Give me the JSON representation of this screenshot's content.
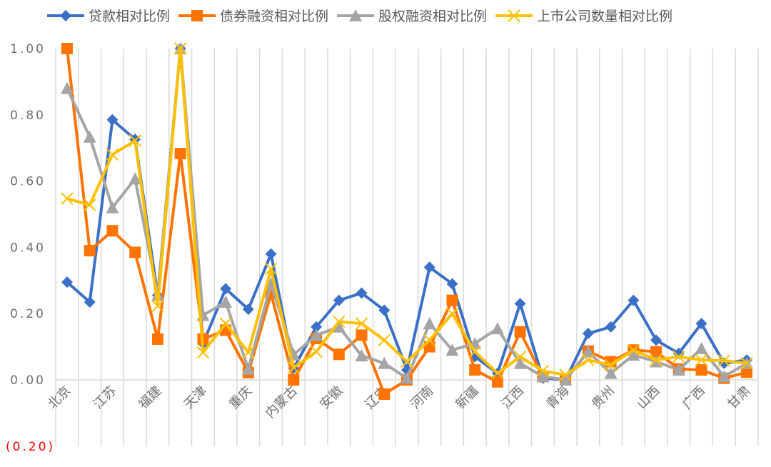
{
  "chart_data": {
    "type": "line",
    "title": "",
    "xlabel": "",
    "ylabel": "",
    "ylim": [
      -0.2,
      1.0
    ],
    "yticks": [
      {
        "value": 1.0,
        "label": "1.00"
      },
      {
        "value": 0.8,
        "label": "0.80"
      },
      {
        "value": 0.6,
        "label": "0.60"
      },
      {
        "value": 0.4,
        "label": "0.40"
      },
      {
        "value": 0.2,
        "label": "0.20"
      },
      {
        "value": 0.0,
        "label": "0.00"
      },
      {
        "value": -0.2,
        "label": "(0.20)",
        "color": "#FF0000"
      }
    ],
    "grid": {
      "vertical": true,
      "horizontal": false
    },
    "legend_position": "top",
    "categories": [
      "北京",
      "",
      "江苏",
      "",
      "福建",
      "",
      "天津",
      "",
      "重庆",
      "",
      "内蒙古",
      "",
      "安徽",
      "",
      "辽宁",
      "",
      "河南",
      "",
      "新疆",
      "",
      "江西",
      "",
      "青海",
      "",
      "贵州",
      "",
      "山西",
      "",
      "广西",
      "",
      "甘肃"
    ],
    "series": [
      {
        "name": "贷款相对比例",
        "color": "#3B70C8",
        "marker": "diamond",
        "values": [
          0.295,
          0.235,
          0.785,
          0.726,
          0.255,
          1.0,
          0.11,
          0.275,
          0.213,
          0.38,
          0.035,
          0.16,
          0.24,
          0.262,
          0.21,
          0.03,
          0.34,
          0.29,
          0.07,
          0.02,
          0.23,
          0.005,
          0.0,
          0.14,
          0.16,
          0.24,
          0.12,
          0.08,
          0.17,
          0.05,
          0.06
        ]
      },
      {
        "name": "债券融资相对比例",
        "color": "#FF7300",
        "marker": "square",
        "values": [
          1.0,
          0.39,
          0.45,
          0.385,
          0.123,
          0.683,
          0.123,
          0.15,
          0.022,
          0.26,
          0.0,
          0.125,
          0.077,
          0.135,
          -0.043,
          0.0,
          0.1,
          0.24,
          0.03,
          -0.006,
          0.145,
          0.01,
          0.0,
          0.087,
          0.055,
          0.09,
          0.085,
          0.033,
          0.03,
          0.005,
          0.023
        ]
      },
      {
        "name": "股权融资相对比例",
        "color": "#A5A5A5",
        "marker": "triangle",
        "values": [
          0.88,
          0.733,
          0.52,
          0.607,
          0.255,
          1.0,
          0.195,
          0.235,
          0.033,
          0.29,
          0.076,
          0.135,
          0.16,
          0.073,
          0.05,
          0.005,
          0.17,
          0.09,
          0.11,
          0.155,
          0.05,
          0.01,
          0.0,
          0.085,
          0.02,
          0.075,
          0.055,
          0.03,
          0.095,
          0.01,
          0.05
        ]
      },
      {
        "name": "上市公司数量相对比例",
        "color": "#FFC000",
        "marker": "x",
        "values": [
          0.547,
          0.528,
          0.68,
          0.722,
          0.223,
          1.0,
          0.083,
          0.17,
          0.083,
          0.335,
          0.037,
          0.085,
          0.176,
          0.17,
          0.12,
          0.055,
          0.12,
          0.2,
          0.085,
          0.02,
          0.07,
          0.027,
          0.015,
          0.06,
          0.045,
          0.09,
          0.06,
          0.07,
          0.06,
          0.058,
          0.05
        ]
      }
    ]
  }
}
